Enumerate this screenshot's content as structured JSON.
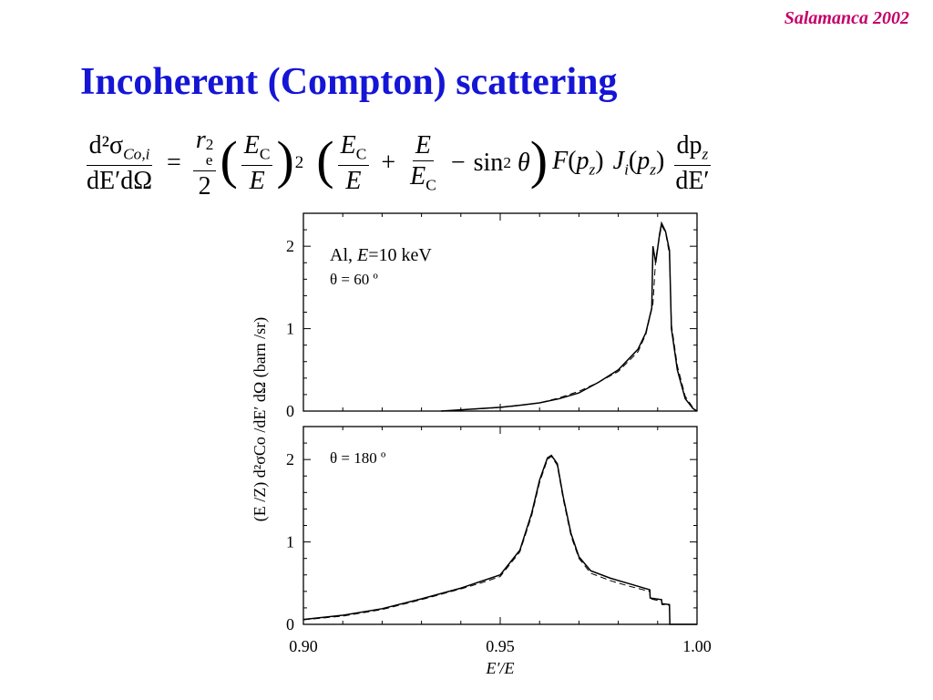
{
  "slide": {
    "watermark": "Salamanca 2002",
    "title": "Incoherent (Compton) scattering",
    "colors": {
      "title": "#1515d6",
      "watermark": "#c4006a",
      "text": "#000000"
    }
  },
  "formula": {
    "lhs_num": "d²σ",
    "lhs_num_sub": "Co,i",
    "lhs_den": "dE′dΩ",
    "equals": "=",
    "re_num": "r",
    "re_sup": "2",
    "re_sub": "e",
    "re_den": "2",
    "ec": "E",
    "ec_sub": "C",
    "e": "E",
    "square": "2",
    "plus": "+",
    "minus": "−",
    "sin_term": "sin",
    "sin_sup": "2",
    "theta": "θ",
    "F": "F",
    "J": "J",
    "J_sub": "i",
    "pz": "p",
    "pz_sub": "z",
    "dpz": "dp",
    "dE_prime": "dE′"
  },
  "chart_data": {
    "type": "line",
    "xlabel": "E′/E",
    "ylabel": "(E /Z)  d²σCo /dE′ dΩ  (barn /sr)",
    "xlim": [
      0.9,
      1.0
    ],
    "xticks": [
      "0.90",
      "0.95",
      "1.00"
    ],
    "ylim": [
      0,
      2.4
    ],
    "yticks": [
      "0",
      "1",
      "2"
    ],
    "panels": [
      {
        "label_line1_prefix": "Al, ",
        "label_line1_italic": "E",
        "label_line1_suffix": "=10 keV",
        "label_line2": "θ = 60 º",
        "series": [
          {
            "style": "solid",
            "points": [
              [
                0.935,
                0.0
              ],
              [
                0.94,
                0.015
              ],
              [
                0.945,
                0.03
              ],
              [
                0.95,
                0.045
              ],
              [
                0.955,
                0.07
              ],
              [
                0.96,
                0.1
              ],
              [
                0.965,
                0.15
              ],
              [
                0.97,
                0.22
              ],
              [
                0.975,
                0.35
              ],
              [
                0.98,
                0.5
              ],
              [
                0.985,
                0.75
              ],
              [
                0.987,
                0.95
              ],
              [
                0.9885,
                1.25
              ],
              [
                0.9888,
                2.0
              ],
              [
                0.9895,
                1.8
              ],
              [
                0.9905,
                2.15
              ],
              [
                0.991,
                2.28
              ],
              [
                0.992,
                2.18
              ],
              [
                0.993,
                1.95
              ],
              [
                0.9935,
                1.0
              ],
              [
                0.995,
                0.5
              ],
              [
                0.997,
                0.15
              ],
              [
                0.999,
                0.03
              ],
              [
                1.0,
                0.0
              ]
            ]
          },
          {
            "style": "dashed",
            "points": [
              [
                0.935,
                0.0
              ],
              [
                0.94,
                0.013
              ],
              [
                0.945,
                0.028
              ],
              [
                0.95,
                0.043
              ],
              [
                0.955,
                0.068
              ],
              [
                0.96,
                0.1
              ],
              [
                0.965,
                0.16
              ],
              [
                0.97,
                0.24
              ],
              [
                0.975,
                0.35
              ],
              [
                0.98,
                0.48
              ],
              [
                0.985,
                0.72
              ],
              [
                0.987,
                0.93
              ],
              [
                0.9888,
                1.3
              ],
              [
                0.9895,
                1.85
              ],
              [
                0.9905,
                2.12
              ],
              [
                0.991,
                2.25
              ],
              [
                0.992,
                2.17
              ],
              [
                0.993,
                1.9
              ],
              [
                0.9935,
                1.05
              ],
              [
                0.995,
                0.55
              ],
              [
                0.997,
                0.18
              ],
              [
                0.999,
                0.04
              ],
              [
                1.0,
                0.0
              ]
            ]
          }
        ]
      },
      {
        "label_line1_prefix": "",
        "label_line1_italic": "",
        "label_line1_suffix": "",
        "label_line2": "θ = 180 º",
        "series": [
          {
            "style": "solid",
            "points": [
              [
                0.9,
                0.06
              ],
              [
                0.91,
                0.11
              ],
              [
                0.92,
                0.19
              ],
              [
                0.93,
                0.31
              ],
              [
                0.94,
                0.44
              ],
              [
                0.945,
                0.52
              ],
              [
                0.95,
                0.6
              ],
              [
                0.955,
                0.9
              ],
              [
                0.958,
                1.35
              ],
              [
                0.96,
                1.75
              ],
              [
                0.962,
                2.02
              ],
              [
                0.963,
                2.05
              ],
              [
                0.9645,
                1.95
              ],
              [
                0.966,
                1.55
              ],
              [
                0.968,
                1.1
              ],
              [
                0.97,
                0.82
              ],
              [
                0.973,
                0.65
              ],
              [
                0.978,
                0.56
              ],
              [
                0.983,
                0.49
              ],
              [
                0.988,
                0.42
              ],
              [
                0.9881,
                0.32
              ],
              [
                0.991,
                0.3
              ],
              [
                0.9911,
                0.25
              ],
              [
                0.993,
                0.24
              ],
              [
                0.9931,
                0.0
              ],
              [
                1.0,
                0.0
              ]
            ]
          },
          {
            "style": "dashed",
            "points": [
              [
                0.9,
                0.055
              ],
              [
                0.91,
                0.1
              ],
              [
                0.92,
                0.18
              ],
              [
                0.93,
                0.3
              ],
              [
                0.94,
                0.43
              ],
              [
                0.945,
                0.5
              ],
              [
                0.95,
                0.58
              ],
              [
                0.955,
                0.88
              ],
              [
                0.958,
                1.32
              ],
              [
                0.96,
                1.72
              ],
              [
                0.962,
                2.0
              ],
              [
                0.963,
                2.04
              ],
              [
                0.9645,
                1.93
              ],
              [
                0.966,
                1.52
              ],
              [
                0.968,
                1.07
              ],
              [
                0.97,
                0.8
              ],
              [
                0.973,
                0.62
              ],
              [
                0.978,
                0.53
              ],
              [
                0.983,
                0.46
              ],
              [
                0.988,
                0.4
              ],
              [
                0.9881,
                0.31
              ],
              [
                0.991,
                0.28
              ],
              [
                0.9911,
                0.24
              ],
              [
                0.993,
                0.23
              ],
              [
                0.9931,
                0.0
              ],
              [
                1.0,
                0.0
              ]
            ]
          }
        ]
      }
    ]
  }
}
